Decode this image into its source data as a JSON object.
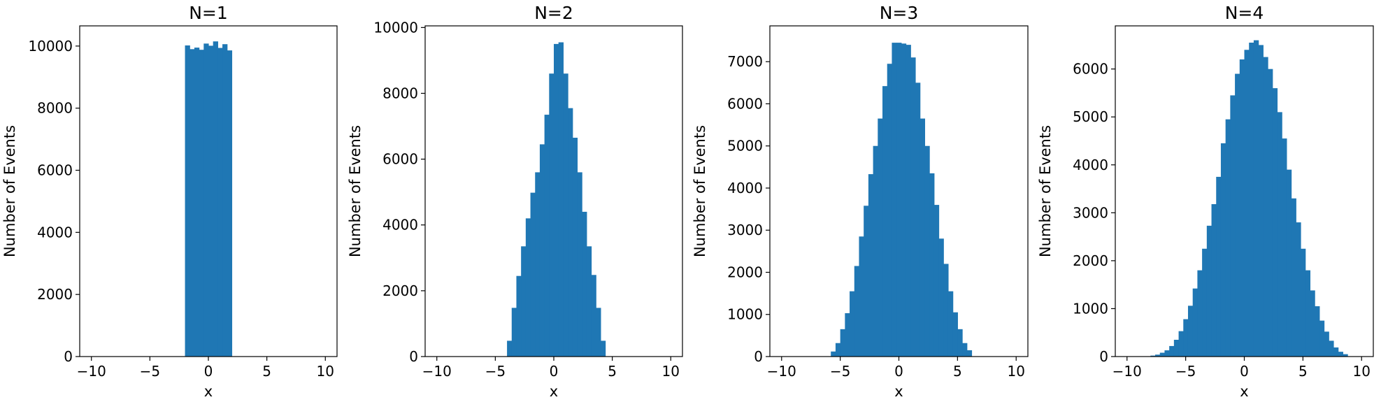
{
  "colors": {
    "bar": "#1f77b4",
    "axes": "#000000",
    "background": "#ffffff"
  },
  "chart_data": [
    {
      "type": "bar",
      "title": "N=1",
      "xlabel": "x",
      "ylabel": "Number of Events",
      "xlim": [
        -11,
        11
      ],
      "ylim": [
        0,
        10650
      ],
      "xticks": [
        -10,
        -5,
        0,
        5,
        10
      ],
      "xtick_labels": [
        "−10",
        "−5",
        "0",
        "5",
        "10"
      ],
      "yticks": [
        0,
        2000,
        4000,
        6000,
        8000,
        10000
      ],
      "ytick_labels": [
        "0",
        "2000",
        "4000",
        "6000",
        "8000",
        "10000"
      ],
      "grid": false,
      "bin_start": -2,
      "bin_width": 0.4,
      "values": [
        10020,
        9900,
        9950,
        9880,
        10080,
        10010,
        10150,
        9940,
        10060,
        9860
      ]
    },
    {
      "type": "bar",
      "title": "N=2",
      "xlabel": "x",
      "ylabel": "Number of Events",
      "xlim": [
        -11,
        11
      ],
      "ylim": [
        0,
        10050
      ],
      "xticks": [
        -10,
        -5,
        0,
        5,
        10
      ],
      "xtick_labels": [
        "−10",
        "−5",
        "0",
        "5",
        "10"
      ],
      "yticks": [
        0,
        2000,
        4000,
        6000,
        8000,
        10000
      ],
      "ytick_labels": [
        "0",
        "2000",
        "4000",
        "6000",
        "8000",
        "10000"
      ],
      "grid": false,
      "bin_start": -4,
      "bin_width": 0.4,
      "values": [
        480,
        1480,
        2450,
        3350,
        4200,
        4980,
        5600,
        6450,
        7350,
        8600,
        9500,
        9550,
        8600,
        7550,
        6650,
        5600,
        4400,
        3350,
        2480,
        1480,
        480
      ]
    },
    {
      "type": "bar",
      "title": "N=3",
      "xlabel": "x",
      "ylabel": "Number of Events",
      "xlim": [
        -11,
        11
      ],
      "ylim": [
        0,
        7850
      ],
      "xticks": [
        -10,
        -5,
        0,
        5,
        10
      ],
      "xtick_labels": [
        "−10",
        "−5",
        "0",
        "5",
        "10"
      ],
      "yticks": [
        0,
        1000,
        2000,
        3000,
        4000,
        5000,
        6000,
        7000
      ],
      "ytick_labels": [
        "0",
        "1000",
        "2000",
        "3000",
        "4000",
        "5000",
        "6000",
        "7000"
      ],
      "grid": false,
      "bin_start": -5.8,
      "bin_width": 0.4,
      "values": [
        120,
        320,
        650,
        1030,
        1550,
        2150,
        2850,
        3580,
        4330,
        5000,
        5650,
        6420,
        6950,
        7450,
        7450,
        7430,
        7400,
        7100,
        6500,
        5650,
        5000,
        4350,
        3600,
        2800,
        2200,
        1550,
        1050,
        650,
        320,
        150
      ]
    },
    {
      "type": "bar",
      "title": "N=4",
      "xlabel": "x",
      "ylabel": "Number of Events",
      "xlim": [
        -11,
        11
      ],
      "ylim": [
        0,
        6900
      ],
      "xticks": [
        -10,
        -5,
        0,
        5,
        10
      ],
      "xtick_labels": [
        "−10",
        "−5",
        "0",
        "5",
        "10"
      ],
      "yticks": [
        0,
        1000,
        2000,
        3000,
        4000,
        5000,
        6000
      ],
      "ytick_labels": [
        "0",
        "1000",
        "2000",
        "3000",
        "4000",
        "5000",
        "6000"
      ],
      "grid": false,
      "bin_start": -8,
      "bin_width": 0.4,
      "values": [
        20,
        40,
        80,
        130,
        220,
        350,
        530,
        780,
        1060,
        1420,
        1800,
        2250,
        2730,
        3180,
        3750,
        4450,
        4950,
        5450,
        5900,
        6200,
        6400,
        6550,
        6600,
        6500,
        6250,
        6000,
        5600,
        5100,
        4550,
        3900,
        3300,
        2800,
        2250,
        1800,
        1380,
        1050,
        750,
        520,
        330,
        190,
        100,
        50
      ]
    }
  ]
}
